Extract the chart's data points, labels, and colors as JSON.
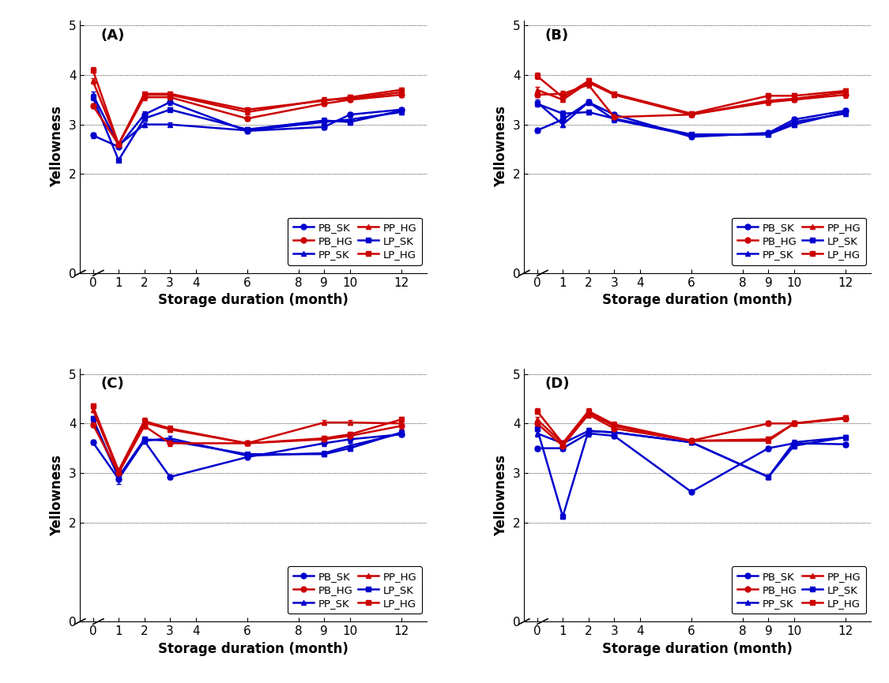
{
  "x": [
    0,
    1,
    2,
    3,
    6,
    9,
    10,
    12
  ],
  "panels": [
    "A",
    "B",
    "C",
    "D"
  ],
  "panel_labels": [
    "(A)",
    "(B)",
    "(C)",
    "(D)"
  ],
  "series": {
    "A": {
      "PB_SK": {
        "y": [
          2.78,
          2.55,
          3.2,
          3.45,
          2.87,
          2.95,
          3.2,
          3.3
        ],
        "err": [
          0.05,
          0.04,
          0.06,
          0.05,
          0.04,
          0.05,
          0.05,
          0.05
        ]
      },
      "PP_SK": {
        "y": [
          3.6,
          2.58,
          3.0,
          3.0,
          2.88,
          3.05,
          3.1,
          3.25
        ],
        "err": [
          0.06,
          0.04,
          0.05,
          0.04,
          0.04,
          0.05,
          0.05,
          0.05
        ]
      },
      "LP_SK": {
        "y": [
          3.55,
          2.28,
          3.12,
          3.3,
          2.9,
          3.08,
          3.05,
          3.28
        ],
        "err": [
          0.06,
          0.04,
          0.05,
          0.04,
          0.04,
          0.05,
          0.05,
          0.05
        ]
      },
      "PB_HG": {
        "y": [
          3.38,
          2.6,
          3.55,
          3.55,
          3.12,
          3.42,
          3.5,
          3.6
        ],
        "err": [
          0.05,
          0.04,
          0.06,
          0.05,
          0.04,
          0.05,
          0.05,
          0.05
        ]
      },
      "PP_HG": {
        "y": [
          3.88,
          2.6,
          3.6,
          3.6,
          3.25,
          3.5,
          3.52,
          3.65
        ],
        "err": [
          0.06,
          0.04,
          0.05,
          0.04,
          0.04,
          0.05,
          0.05,
          0.05
        ]
      },
      "LP_HG": {
        "y": [
          4.1,
          2.6,
          3.62,
          3.62,
          3.3,
          3.48,
          3.55,
          3.7
        ],
        "err": [
          0.06,
          0.04,
          0.05,
          0.05,
          0.04,
          0.05,
          0.05,
          0.05
        ]
      }
    },
    "B": {
      "PB_SK": {
        "y": [
          2.88,
          3.1,
          3.45,
          3.2,
          2.75,
          2.83,
          3.1,
          3.28
        ],
        "err": [
          0.05,
          0.06,
          0.06,
          0.05,
          0.04,
          0.05,
          0.05,
          0.05
        ]
      },
      "PP_SK": {
        "y": [
          3.45,
          3.0,
          3.45,
          3.1,
          2.78,
          2.8,
          3.05,
          3.22
        ],
        "err": [
          0.06,
          0.05,
          0.06,
          0.05,
          0.04,
          0.05,
          0.05,
          0.05
        ]
      },
      "LP_SK": {
        "y": [
          3.42,
          3.22,
          3.25,
          3.12,
          2.8,
          2.8,
          3.0,
          3.25
        ],
        "err": [
          0.06,
          0.06,
          0.05,
          0.05,
          0.04,
          0.05,
          0.05,
          0.05
        ]
      },
      "PB_HG": {
        "y": [
          3.6,
          3.62,
          3.8,
          3.15,
          3.2,
          3.45,
          3.5,
          3.6
        ],
        "err": [
          0.05,
          0.06,
          0.06,
          0.05,
          0.04,
          0.05,
          0.05,
          0.06
        ]
      },
      "PP_HG": {
        "y": [
          3.7,
          3.5,
          3.85,
          3.6,
          3.2,
          3.48,
          3.52,
          3.65
        ],
        "err": [
          0.06,
          0.05,
          0.06,
          0.05,
          0.04,
          0.05,
          0.05,
          0.05
        ]
      },
      "LP_HG": {
        "y": [
          3.98,
          3.55,
          3.88,
          3.62,
          3.22,
          3.58,
          3.58,
          3.68
        ],
        "err": [
          0.06,
          0.06,
          0.05,
          0.05,
          0.04,
          0.05,
          0.05,
          0.05
        ]
      }
    },
    "C": {
      "PB_SK": {
        "y": [
          3.62,
          2.88,
          3.65,
          2.92,
          3.32,
          3.6,
          3.68,
          3.78
        ],
        "err": [
          0.05,
          0.1,
          0.06,
          0.05,
          0.04,
          0.05,
          0.05,
          0.05
        ]
      },
      "PP_SK": {
        "y": [
          4.05,
          2.92,
          3.65,
          3.7,
          3.35,
          3.4,
          3.55,
          3.8
        ],
        "err": [
          0.05,
          0.05,
          0.05,
          0.05,
          0.04,
          0.05,
          0.05,
          0.05
        ]
      },
      "LP_SK": {
        "y": [
          4.1,
          2.92,
          3.68,
          3.65,
          3.38,
          3.38,
          3.5,
          3.82
        ],
        "err": [
          0.05,
          0.05,
          0.05,
          0.05,
          0.04,
          0.05,
          0.05,
          0.05
        ]
      },
      "PB_HG": {
        "y": [
          3.98,
          3.0,
          3.95,
          3.6,
          3.6,
          3.68,
          3.75,
          3.95
        ],
        "err": [
          0.05,
          0.05,
          0.06,
          0.05,
          0.04,
          0.05,
          0.05,
          0.05
        ]
      },
      "PP_HG": {
        "y": [
          4.28,
          3.02,
          4.02,
          3.88,
          3.6,
          4.02,
          4.02,
          4.0
        ],
        "err": [
          0.05,
          0.05,
          0.06,
          0.05,
          0.04,
          0.05,
          0.05,
          0.05
        ]
      },
      "LP_HG": {
        "y": [
          4.35,
          3.05,
          4.05,
          3.9,
          3.6,
          3.7,
          3.78,
          4.08
        ],
        "err": [
          0.05,
          0.05,
          0.06,
          0.05,
          0.04,
          0.05,
          0.05,
          0.05
        ]
      }
    },
    "D": {
      "PB_SK": {
        "y": [
          3.5,
          3.5,
          3.8,
          3.75,
          2.62,
          3.5,
          3.6,
          3.58
        ],
        "err": [
          0.05,
          0.05,
          0.06,
          0.05,
          0.04,
          0.05,
          0.05,
          0.05
        ]
      },
      "PP_SK": {
        "y": [
          3.8,
          3.6,
          3.85,
          3.82,
          3.62,
          2.92,
          3.62,
          3.72
        ],
        "err": [
          0.06,
          0.05,
          0.06,
          0.05,
          0.04,
          0.05,
          0.05,
          0.05
        ]
      },
      "LP_SK": {
        "y": [
          3.9,
          2.12,
          3.85,
          3.82,
          3.62,
          2.92,
          3.55,
          3.72
        ],
        "err": [
          0.06,
          0.05,
          0.06,
          0.05,
          0.04,
          0.05,
          0.05,
          0.05
        ]
      },
      "PB_HG": {
        "y": [
          4.0,
          3.55,
          4.18,
          3.9,
          3.65,
          4.0,
          4.0,
          4.1
        ],
        "err": [
          0.05,
          0.05,
          0.06,
          0.05,
          0.04,
          0.05,
          0.05,
          0.05
        ]
      },
      "PP_HG": {
        "y": [
          4.08,
          3.6,
          4.22,
          3.95,
          3.65,
          3.65,
          4.0,
          4.1
        ],
        "err": [
          0.06,
          0.05,
          0.06,
          0.05,
          0.04,
          0.05,
          0.05,
          0.05
        ]
      },
      "LP_HG": {
        "y": [
          4.25,
          3.6,
          4.25,
          3.98,
          3.65,
          3.68,
          4.0,
          4.12
        ],
        "err": [
          0.06,
          0.05,
          0.06,
          0.05,
          0.04,
          0.05,
          0.05,
          0.05
        ]
      }
    }
  },
  "series_styles": {
    "PB_SK": {
      "color": "#0000CC",
      "marker": "o",
      "linestyle": "-"
    },
    "PP_SK": {
      "color": "#0000CC",
      "marker": "^",
      "linestyle": "-"
    },
    "LP_SK": {
      "color": "#0000CC",
      "marker": "s",
      "linestyle": "-"
    },
    "PB_HG": {
      "color": "#CC0000",
      "marker": "o",
      "linestyle": "-"
    },
    "PP_HG": {
      "color": "#CC0000",
      "marker": "^",
      "linestyle": "-"
    },
    "LP_HG": {
      "color": "#CC0000",
      "marker": "s",
      "linestyle": "-"
    }
  },
  "xlabel": "Storage duration (month)",
  "ylabel": "Yellowness",
  "ylim": [
    0,
    5.1
  ],
  "yticks": [
    0,
    2,
    3,
    4,
    5
  ],
  "yticklabels": [
    "0",
    "2",
    "3",
    "4",
    "5"
  ],
  "xticks": [
    0,
    1,
    2,
    3,
    4,
    6,
    8,
    9,
    10,
    12
  ],
  "xticklabels": [
    "0",
    "1",
    "2",
    "3",
    "4",
    "6",
    "8",
    "9",
    "10",
    "12"
  ],
  "grid_yticks": [
    2,
    3,
    4,
    5
  ],
  "legend_order": [
    "PB_SK",
    "PB_HG",
    "PP_SK",
    "PP_HG",
    "LP_SK",
    "LP_HG"
  ],
  "markersize": 5,
  "linewidth": 1.8,
  "capsize": 2,
  "elinewidth": 1.0
}
